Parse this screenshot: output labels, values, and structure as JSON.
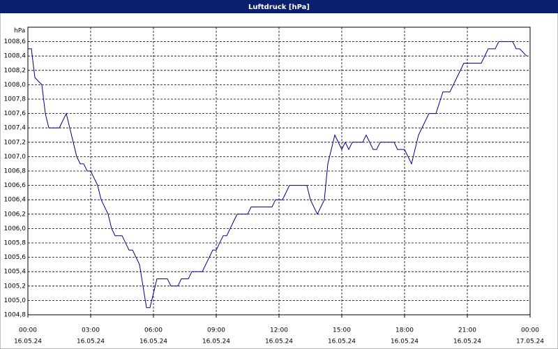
{
  "chart_data": {
    "type": "line",
    "title": "Luftdruck [hPa]",
    "y_unit": "hPa",
    "x": [
      "16.05.24 00:00",
      "16.05.24 00:10",
      "16.05.24 00:20",
      "16.05.24 00:40",
      "16.05.24 00:50",
      "16.05.24 01:00",
      "16.05.24 01:30",
      "16.05.24 01:50",
      "16.05.24 02:20",
      "16.05.24 02:30",
      "16.05.24 02:40",
      "16.05.24 02:50",
      "16.05.24 03:00",
      "16.05.24 03:20",
      "16.05.24 03:30",
      "16.05.24 03:50",
      "16.05.24 04:00",
      "16.05.24 04:10",
      "16.05.24 04:30",
      "16.05.24 04:50",
      "16.05.24 05:00",
      "16.05.24 05:20",
      "16.05.24 05:40",
      "16.05.24 05:50",
      "16.05.24 06:10",
      "16.05.24 06:40",
      "16.05.24 06:50",
      "16.05.24 07:10",
      "16.05.24 07:20",
      "16.05.24 07:40",
      "16.05.24 07:50",
      "16.05.24 08:20",
      "16.05.24 08:50",
      "16.05.24 09:00",
      "16.05.24 09:20",
      "16.05.24 09:30",
      "16.05.24 10:00",
      "16.05.24 10:30",
      "16.05.24 10:40",
      "16.05.24 11:40",
      "16.05.24 11:50",
      "16.05.24 12:10",
      "16.05.24 12:30",
      "16.05.24 13:20",
      "16.05.24 13:30",
      "16.05.24 13:50",
      "16.05.24 14:10",
      "16.05.24 14:20",
      "16.05.24 14:40",
      "16.05.24 15:00",
      "16.05.24 15:10",
      "16.05.24 15:20",
      "16.05.24 15:30",
      "16.05.24 16:00",
      "16.05.24 16:10",
      "16.05.24 16:30",
      "16.05.24 16:40",
      "16.05.24 16:50",
      "16.05.24 17:30",
      "16.05.24 17:40",
      "16.05.24 18:00",
      "16.05.24 18:20",
      "16.05.24 18:40",
      "16.05.24 19:10",
      "16.05.24 19:30",
      "16.05.24 19:50",
      "16.05.24 20:10",
      "16.05.24 20:50",
      "16.05.24 21:40",
      "16.05.24 22:00",
      "16.05.24 22:20",
      "16.05.24 22:30",
      "16.05.24 23:10",
      "16.05.24 23:20",
      "16.05.24 23:30",
      "16.05.24 23:50"
    ],
    "series": [
      {
        "name": "Luftdruck",
        "color": "#00008b",
        "values": [
          1008.5,
          1008.5,
          1008.1,
          1008.0,
          1007.6,
          1007.4,
          1007.4,
          1007.6,
          1007.0,
          1006.9,
          1006.9,
          1006.8,
          1006.8,
          1006.6,
          1006.4,
          1006.2,
          1006.0,
          1005.9,
          1005.9,
          1005.7,
          1005.7,
          1005.5,
          1004.9,
          1004.9,
          1005.3,
          1005.3,
          1005.2,
          1005.2,
          1005.3,
          1005.3,
          1005.4,
          1005.4,
          1005.7,
          1005.7,
          1005.9,
          1005.9,
          1006.2,
          1006.2,
          1006.3,
          1006.3,
          1006.4,
          1006.4,
          1006.6,
          1006.6,
          1006.4,
          1006.2,
          1006.4,
          1006.9,
          1007.3,
          1007.1,
          1007.2,
          1007.1,
          1007.2,
          1007.2,
          1007.3,
          1007.1,
          1007.1,
          1007.2,
          1007.2,
          1007.1,
          1007.1,
          1006.9,
          1007.3,
          1007.6,
          1007.6,
          1007.9,
          1007.9,
          1008.3,
          1008.3,
          1008.5,
          1008.5,
          1008.6,
          1008.6,
          1008.5,
          1008.5,
          1008.4
        ]
      }
    ],
    "xlim": [
      "16.05.24 00:00",
      "17.05.24 00:00"
    ],
    "xticks": [
      {
        "value": "16.05.24 00:00",
        "label": [
          "00:00",
          "16.05.24"
        ]
      },
      {
        "value": "16.05.24 03:00",
        "label": [
          "03:00",
          "16.05.24"
        ]
      },
      {
        "value": "16.05.24 06:00",
        "label": [
          "06:00",
          "16.05.24"
        ]
      },
      {
        "value": "16.05.24 09:00",
        "label": [
          "09:00",
          "16.05.24"
        ]
      },
      {
        "value": "16.05.24 12:00",
        "label": [
          "12:00",
          "16.05.24"
        ]
      },
      {
        "value": "16.05.24 15:00",
        "label": [
          "15:00",
          "16.05.24"
        ]
      },
      {
        "value": "16.05.24 18:00",
        "label": [
          "18:00",
          "16.05.24"
        ]
      },
      {
        "value": "16.05.24 21:00",
        "label": [
          "21:00",
          "16.05.24"
        ]
      },
      {
        "value": "17.05.24 00:00",
        "label": [
          "00:00",
          "17.05.24"
        ]
      }
    ],
    "ylim": [
      1004.8,
      1008.8
    ],
    "yticks": [
      {
        "value": 1004.8,
        "label": "1004,8"
      },
      {
        "value": 1005.0,
        "label": "1005,0"
      },
      {
        "value": 1005.2,
        "label": "1005,2"
      },
      {
        "value": 1005.4,
        "label": "1005,4"
      },
      {
        "value": 1005.6,
        "label": "1005,6"
      },
      {
        "value": 1005.8,
        "label": "1005,8"
      },
      {
        "value": 1006.0,
        "label": "1006,0"
      },
      {
        "value": 1006.2,
        "label": "1006,2"
      },
      {
        "value": 1006.4,
        "label": "1006,4"
      },
      {
        "value": 1006.6,
        "label": "1006,6"
      },
      {
        "value": 1006.8,
        "label": "1006,8"
      },
      {
        "value": 1007.0,
        "label": "1007,0"
      },
      {
        "value": 1007.2,
        "label": "1007,2"
      },
      {
        "value": 1007.4,
        "label": "1007,4"
      },
      {
        "value": 1007.6,
        "label": "1007,6"
      },
      {
        "value": 1007.8,
        "label": "1007,8"
      },
      {
        "value": 1008.0,
        "label": "1008,0"
      },
      {
        "value": 1008.2,
        "label": "1008,2"
      },
      {
        "value": 1008.4,
        "label": "1008,4"
      },
      {
        "value": 1008.6,
        "label": "1008,6"
      }
    ],
    "grid": true
  }
}
